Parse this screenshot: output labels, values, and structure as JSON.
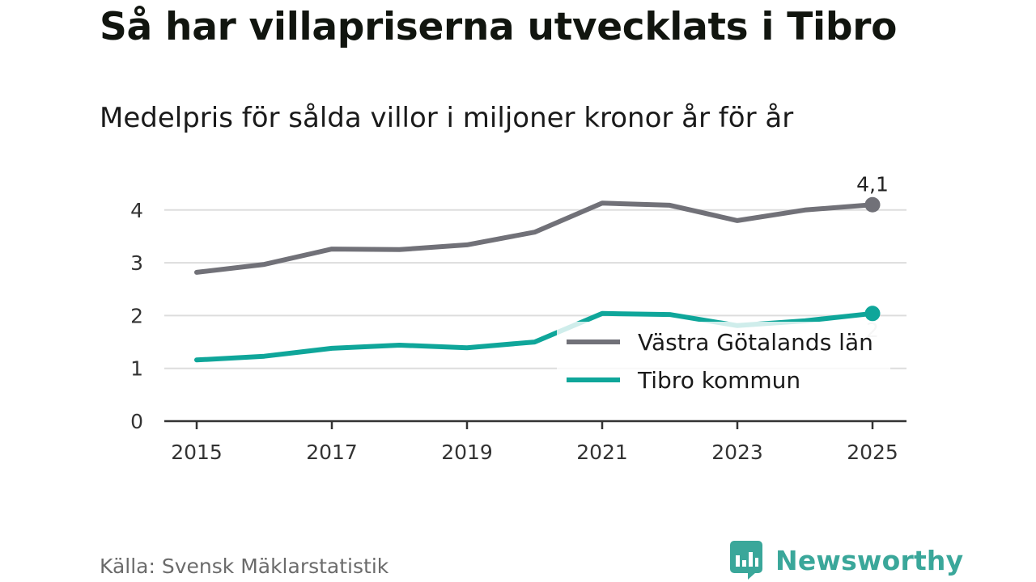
{
  "title": "Så har villapriserna utvecklats i Tibro",
  "subtitle": "Medelpris för sålda villor i miljoner kronor år för år",
  "source": "Källa: Svensk Mäklarstatistik",
  "brand": {
    "name": "Newsworthy",
    "icon": "bar-chart-speech-bubble-icon",
    "color": "#3aa79a"
  },
  "chart_data": {
    "type": "line",
    "x": [
      2015,
      2016,
      2017,
      2018,
      2019,
      2020,
      2021,
      2022,
      2023,
      2024,
      2025
    ],
    "xticks": [
      2015,
      2017,
      2019,
      2021,
      2023,
      2025
    ],
    "yticks": [
      0,
      1,
      2,
      3,
      4
    ],
    "ylim": [
      0,
      4.3
    ],
    "xlabel": "",
    "ylabel": "",
    "grid": true,
    "legend_position": "center-right",
    "series": [
      {
        "name": "Västra Götalands län",
        "color": "#717178",
        "values": [
          2.82,
          2.97,
          3.26,
          3.25,
          3.34,
          3.58,
          4.13,
          4.09,
          3.8,
          4.0,
          4.1
        ],
        "end_label": "4,1"
      },
      {
        "name": "Tibro kommun",
        "color": "#0fa69a",
        "values": [
          1.16,
          1.23,
          1.38,
          1.44,
          1.39,
          1.5,
          2.04,
          2.02,
          1.81,
          1.9,
          2.04
        ],
        "end_label": "2"
      }
    ]
  }
}
